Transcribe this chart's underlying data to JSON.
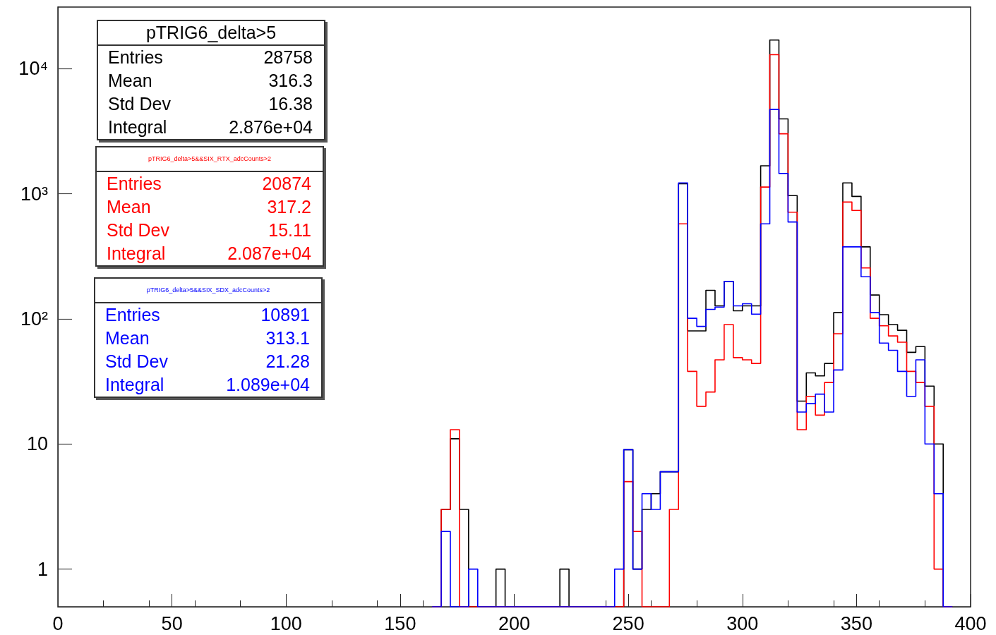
{
  "chart_data": {
    "type": "histogram",
    "bins": [
      164,
      168,
      172,
      176,
      180,
      184,
      188,
      192,
      196,
      200,
      204,
      208,
      212,
      216,
      220,
      224,
      228,
      232,
      236,
      240,
      244,
      248,
      252,
      256,
      260,
      264,
      268,
      272,
      276,
      280,
      284,
      288,
      292,
      296,
      300,
      304,
      308,
      312,
      316,
      320,
      324,
      328,
      332,
      336,
      340,
      344,
      348,
      352,
      356,
      360,
      364,
      368,
      372,
      376,
      380,
      384,
      388,
      392
    ],
    "series": [
      {
        "name": "pTRIG6_delta>5",
        "color": "#000000",
        "values": [
          null,
          3,
          11,
          3,
          null,
          null,
          null,
          1,
          null,
          null,
          null,
          null,
          null,
          null,
          1,
          null,
          null,
          null,
          null,
          null,
          null,
          9,
          1,
          3,
          4,
          6,
          6,
          1200,
          80,
          80,
          169,
          127,
          199,
          116,
          127,
          127,
          1670,
          16900,
          3960,
          965,
          22,
          37,
          35,
          44,
          112,
          1220,
          951,
          376,
          155,
          108,
          90,
          81,
          54,
          60,
          29,
          10,
          null
        ]
      },
      {
        "name": "pTRIG6_delta>5&&SIX_RTX_adcCounts>2",
        "color": "#ff0000",
        "values": [
          null,
          3,
          13,
          null,
          null,
          null,
          null,
          null,
          null,
          null,
          null,
          null,
          null,
          null,
          null,
          null,
          null,
          null,
          null,
          null,
          null,
          5,
          2,
          null,
          null,
          null,
          3,
          574,
          38,
          20,
          26,
          47,
          90,
          49,
          47,
          44,
          1130,
          12900,
          3010,
          711,
          13,
          24,
          17,
          31,
          76,
          857,
          735,
          255,
          101,
          88,
          73,
          65,
          38,
          31,
          20,
          1,
          null
        ]
      },
      {
        "name": "pTRIG6_delta>5&&SIX_SDX_adcCounts>2",
        "color": "#0000ff",
        "values": [
          null,
          2,
          null,
          null,
          1,
          null,
          null,
          null,
          null,
          null,
          null,
          null,
          null,
          null,
          null,
          null,
          null,
          null,
          null,
          null,
          1,
          9,
          1,
          4,
          3,
          6,
          6,
          1220,
          101,
          87,
          119,
          124,
          199,
          127,
          132,
          109,
          574,
          4710,
          1450,
          594,
          18,
          21,
          25,
          18,
          39,
          376,
          376,
          217,
          112,
          64,
          56,
          38,
          24,
          47,
          10,
          4,
          null
        ]
      }
    ],
    "annotations": [
      "Entries 28758",
      "Mean 316.3",
      "Std Dev 16.38",
      "Integral 2.876e+04",
      "Entries 20874",
      "Mean 317.2",
      "Std Dev 15.11",
      "Integral 2.087e+04",
      "Entries 10891",
      "Mean 313.1",
      "Std Dev 21.28",
      "Integral 1.089e+04"
    ],
    "xlim": [
      0,
      400
    ],
    "xticks": [
      0,
      50,
      100,
      150,
      200,
      250,
      300,
      350,
      400
    ],
    "ylim": [
      0.5,
      31000
    ],
    "yticks": [
      1,
      10,
      {
        "value": 100,
        "label": "10²"
      },
      {
        "value": 1000,
        "label": "10³"
      },
      {
        "value": 10000,
        "label": "10⁴"
      }
    ],
    "log": "y",
    "grid": false,
    "legend": false,
    "line_style": "solid"
  }
}
